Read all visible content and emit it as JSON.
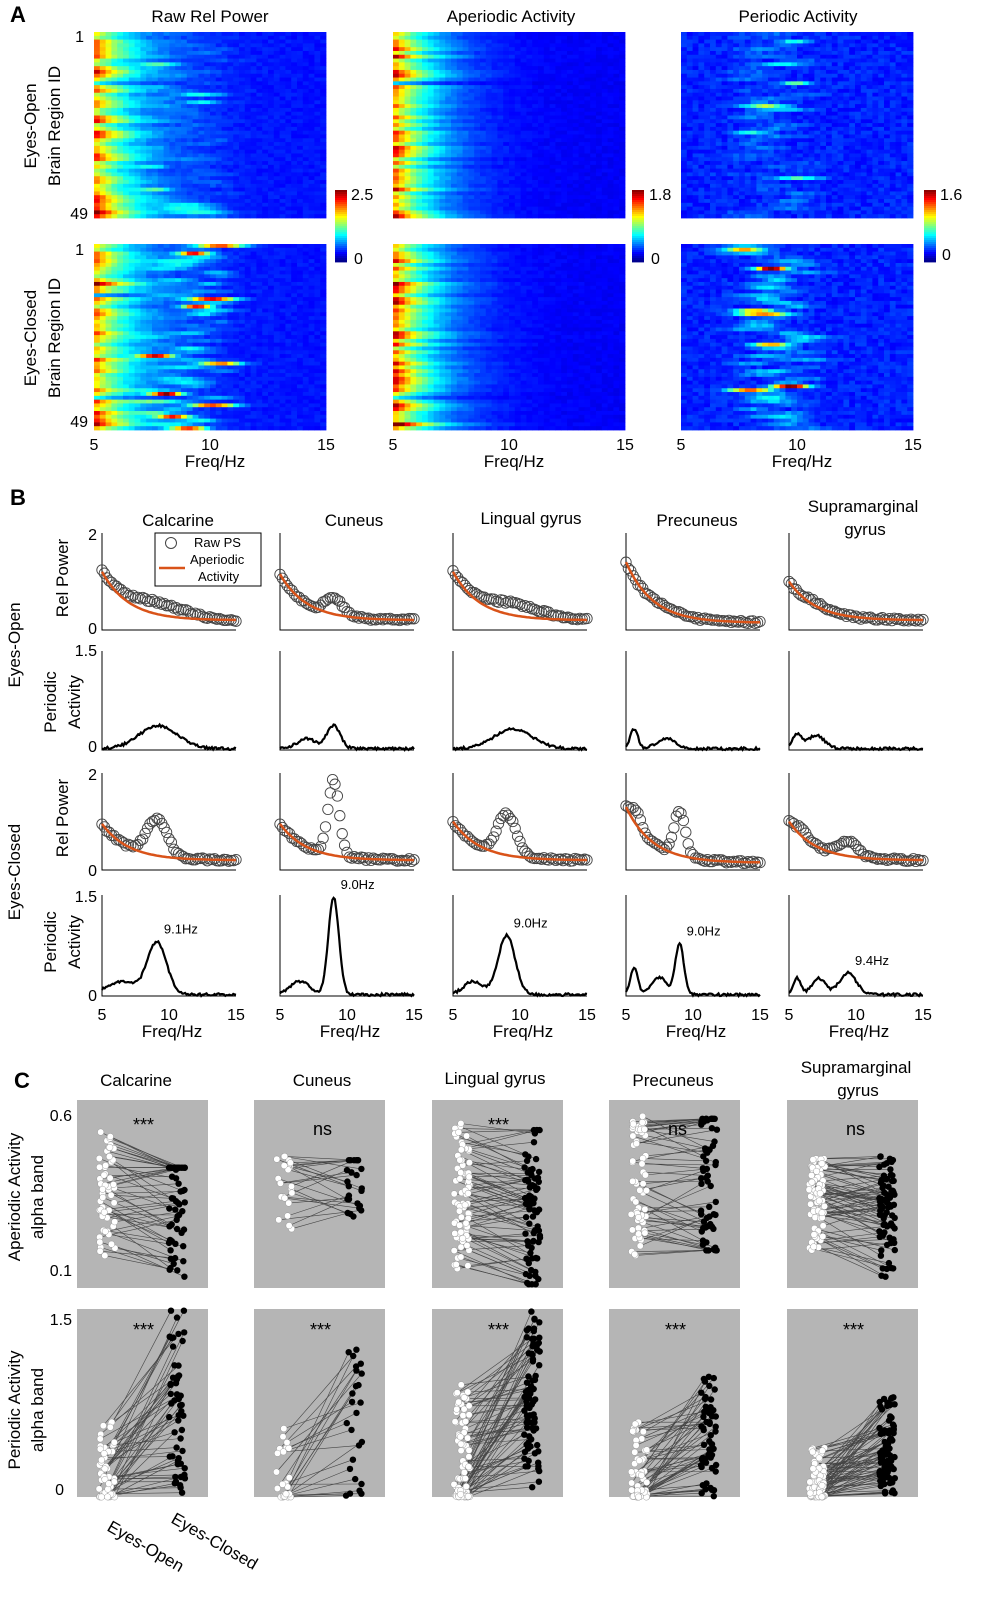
{
  "panel_letters": [
    "A",
    "B",
    "C"
  ],
  "colors": {
    "orange": "#d95319",
    "grey_bg": "#b5b5b5",
    "black": "#000000"
  },
  "chart_data": [
    {
      "id": "A",
      "type": "heatmap",
      "columns": [
        {
          "title": "Raw Rel Power",
          "cbar_max": "2.5",
          "cbar_min": "0"
        },
        {
          "title": "Aperiodic Activity",
          "cbar_max": "1.8",
          "cbar_min": "0"
        },
        {
          "title": "Periodic Activity",
          "cbar_max": "1.6",
          "cbar_min": "0"
        }
      ],
      "rows": [
        {
          "condition": "Eyes-Open",
          "ylabel": "Brain Region ID"
        },
        {
          "condition": "Eyes-Closed",
          "ylabel": "Brain Region ID"
        }
      ],
      "y_ticks": [
        "1",
        "49"
      ],
      "x_ticks": [
        "5",
        "10",
        "15"
      ],
      "xlabel": "Freq/Hz",
      "xlim": [
        5,
        15
      ],
      "n_regions": 49,
      "colormap": "jet"
    },
    {
      "id": "B",
      "type": "line",
      "regions": [
        "Calcarine",
        "Cuneus",
        "Lingual gyrus",
        "Precuneus",
        "Supramarginal gyrus"
      ],
      "rows": [
        {
          "condition": "Eyes-Open",
          "ylabel": "Rel Power",
          "yticks": [
            "2",
            "0"
          ],
          "ylim": [
            0,
            2
          ]
        },
        {
          "condition": "Eyes-Open",
          "ylabel": "Periodic Activity",
          "yticks": [
            "1.5",
            "0"
          ],
          "ylim": [
            0,
            1.5
          ]
        },
        {
          "condition": "Eyes-Closed",
          "ylabel": "Rel Power",
          "yticks": [
            "2",
            "0"
          ],
          "ylim": [
            0,
            2
          ]
        },
        {
          "condition": "Eyes-Closed",
          "ylabel": "Periodic Activity",
          "yticks": [
            "1.5",
            "0"
          ],
          "ylim": [
            0,
            1.5
          ]
        }
      ],
      "legend": [
        "Raw PS",
        "Aperiodic Activity"
      ],
      "x_ticks": [
        "5",
        "10",
        "15"
      ],
      "xlabel": "Freq/Hz",
      "xlim": [
        5,
        15
      ],
      "series": {
        "eo_rel": [
          {
            "start": 1.2,
            "end": 0.2,
            "peaks": [
              [
                9.0,
                0.25,
                3.0
              ]
            ]
          },
          {
            "start": 1.15,
            "end": 0.2,
            "peaks": [
              [
                9.0,
                0.35,
                0.9
              ]
            ]
          },
          {
            "start": 1.2,
            "end": 0.2,
            "peaks": [
              [
                9.5,
                0.25,
                3.0
              ]
            ]
          },
          {
            "start": 1.4,
            "end": 0.15,
            "peaks": [
              [
                8.0,
                0.05,
                1.5
              ]
            ]
          },
          {
            "start": 1.0,
            "end": 0.2,
            "peaks": [
              [
                7.0,
                0.08,
                1.0
              ]
            ]
          }
        ],
        "eo_per": [
          {
            "peaks": [
              [
                9.2,
                0.35,
                2.0
              ]
            ]
          },
          {
            "peaks": [
              [
                9.0,
                0.35,
                0.7
              ],
              [
                7.0,
                0.15,
                1.0
              ]
            ]
          },
          {
            "peaks": [
              [
                9.5,
                0.3,
                2.0
              ]
            ]
          },
          {
            "peaks": [
              [
                5.6,
                0.3,
                0.4
              ],
              [
                8.0,
                0.15,
                1.0
              ]
            ]
          },
          {
            "peaks": [
              [
                5.6,
                0.2,
                0.5
              ],
              [
                7.0,
                0.2,
                0.9
              ]
            ]
          }
        ],
        "ec_rel": [
          {
            "start": 0.95,
            "end": 0.2,
            "peaks": [
              [
                9.1,
                0.75,
                1.1
              ]
            ]
          },
          {
            "start": 0.95,
            "end": 0.2,
            "peaks": [
              [
                9.0,
                1.55,
                0.6
              ]
            ]
          },
          {
            "start": 1.0,
            "end": 0.2,
            "peaks": [
              [
                9.0,
                0.85,
                1.0
              ]
            ]
          },
          {
            "start": 1.3,
            "end": 0.15,
            "peaks": [
              [
                9.0,
                0.9,
                0.6
              ],
              [
                5.8,
                0.3,
                0.5
              ]
            ]
          },
          {
            "start": 1.0,
            "end": 0.2,
            "peaks": [
              [
                9.4,
                0.3,
                1.0
              ],
              [
                6.0,
                0.15,
                0.7
              ]
            ]
          }
        ],
        "ec_per": [
          {
            "peaks": [
              [
                9.1,
                0.78,
                1.0
              ],
              [
                6.5,
                0.2,
                1.5
              ]
            ]
          },
          {
            "peaks": [
              [
                9.0,
                1.45,
                0.55
              ],
              [
                6.5,
                0.2,
                1.0
              ]
            ]
          },
          {
            "peaks": [
              [
                9.0,
                0.88,
                0.9
              ],
              [
                6.5,
                0.2,
                1.0
              ]
            ]
          },
          {
            "peaks": [
              [
                9.0,
                0.75,
                0.45
              ],
              [
                5.6,
                0.4,
                0.4
              ],
              [
                7.5,
                0.25,
                0.8
              ]
            ]
          },
          {
            "peaks": [
              [
                9.4,
                0.32,
                0.9
              ],
              [
                5.6,
                0.25,
                0.4
              ],
              [
                7.2,
                0.25,
                0.7
              ]
            ]
          }
        ]
      },
      "peak_labels": [
        "9.1Hz",
        "9.0Hz",
        "9.0Hz",
        "9.0Hz",
        "9.4Hz"
      ],
      "peak_freqs": [
        9.1,
        9.0,
        9.0,
        9.0,
        9.4
      ]
    },
    {
      "id": "C",
      "type": "scatter",
      "regions": [
        "Calcarine",
        "Cuneus",
        "Lingual gyrus",
        "Precuneus",
        "Supramarginal gyrus"
      ],
      "rows": [
        {
          "ylabel": "Aperiodic Activity alpha band",
          "yticks": [
            "0.6",
            "0.1"
          ],
          "ylim": [
            0.1,
            0.6
          ],
          "significance": [
            "***",
            "ns",
            "***",
            "ns",
            "ns"
          ],
          "groups": [
            {
              "n": 55,
              "open": [
                0.18,
                0.54
              ],
              "closed": [
                0.13,
                0.42
              ],
              "trend": -0.04
            },
            {
              "n": 25,
              "open": [
                0.24,
                0.45
              ],
              "closed": [
                0.2,
                0.44
              ],
              "trend": 0.0
            },
            {
              "n": 80,
              "open": [
                0.13,
                0.55
              ],
              "closed": [
                0.11,
                0.52
              ],
              "trend": -0.03
            },
            {
              "n": 60,
              "open": [
                0.18,
                0.56
              ],
              "closed": [
                0.2,
                0.55
              ],
              "trend": 0.0
            },
            {
              "n": 80,
              "open": [
                0.2,
                0.45
              ],
              "closed": [
                0.13,
                0.45
              ],
              "trend": -0.02
            }
          ]
        },
        {
          "ylabel": "Periodic Activity alpha band",
          "yticks": [
            "1.5",
            "0"
          ],
          "ylim": [
            0,
            1.5
          ],
          "significance": [
            "***",
            "***",
            "***",
            "***",
            "***"
          ],
          "groups": [
            {
              "n": 55,
              "open": [
                0.0,
                0.6
              ],
              "closed": [
                0.0,
                1.5
              ],
              "trend": 0.45
            },
            {
              "n": 25,
              "open": [
                0.0,
                0.6
              ],
              "closed": [
                0.0,
                1.3
              ],
              "trend": 0.45
            },
            {
              "n": 80,
              "open": [
                0.0,
                0.95
              ],
              "closed": [
                0.0,
                1.5
              ],
              "trend": 0.4
            },
            {
              "n": 60,
              "open": [
                0.0,
                0.6
              ],
              "closed": [
                0.0,
                1.05
              ],
              "trend": 0.25
            },
            {
              "n": 80,
              "open": [
                0.0,
                0.4
              ],
              "closed": [
                0.0,
                0.8
              ],
              "trend": 0.12
            }
          ]
        }
      ],
      "x_categories": [
        "Eyes-Open",
        "Eyes-Closed"
      ]
    }
  ]
}
